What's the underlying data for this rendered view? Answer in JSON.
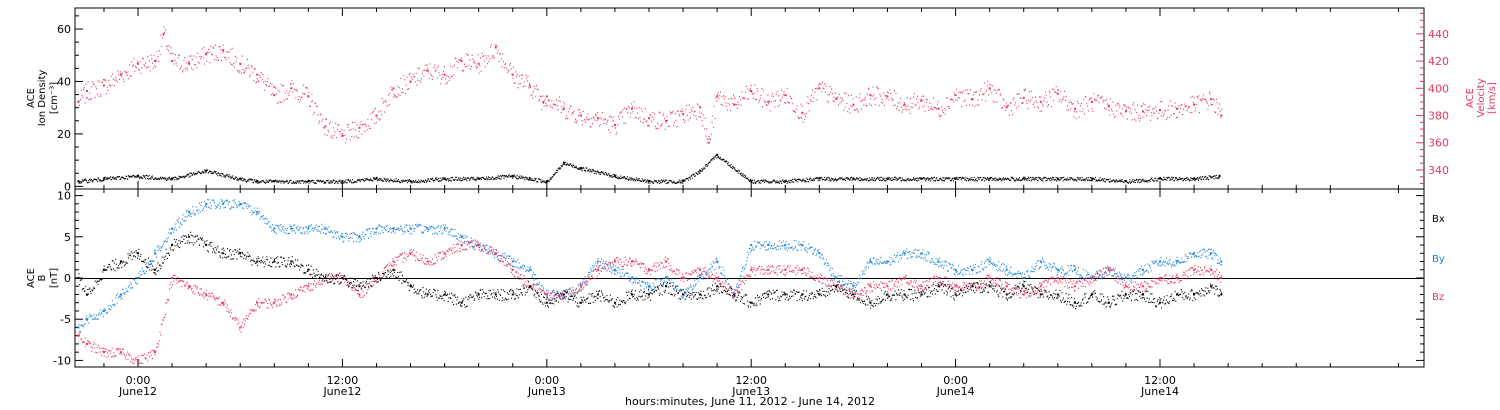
{
  "colors": {
    "density": "#000000",
    "velocity": "#e8365f",
    "bx": "#000000",
    "by": "#1a83e0",
    "bz": "#e8365f"
  },
  "x_axis": {
    "title": "hours:minutes, June 11, 2012 - June 14, 2012",
    "ticks": [
      {
        "time": "0:00",
        "date": "June12",
        "h": 24
      },
      {
        "time": "12:00",
        "date": "June12",
        "h": 36
      },
      {
        "time": "0:00",
        "date": "June13",
        "h": 48
      },
      {
        "time": "12:00",
        "date": "June13",
        "h": 60
      },
      {
        "time": "0:00",
        "date": "June14",
        "h": 72
      },
      {
        "time": "12:00",
        "date": "June14",
        "h": 84
      }
    ]
  },
  "panel1": {
    "left_label": [
      "ACE",
      "Ion Density",
      "[cm⁻³]"
    ],
    "right_label": [
      "ACE",
      "Velocity",
      "[km/s]"
    ],
    "left_ticks": [
      "0",
      "20",
      "40",
      "60"
    ],
    "right_ticks": [
      "340",
      "360",
      "380",
      "400",
      "420",
      "440"
    ]
  },
  "panel2": {
    "left_label": [
      "ACE",
      "B",
      "[nT]"
    ],
    "left_ticks": [
      "-10",
      "-5",
      "0",
      "5",
      "10"
    ],
    "legend": [
      "Bx",
      "By",
      "Bz"
    ]
  },
  "chart_data": [
    {
      "type": "scatter",
      "title": "",
      "xlabel": "hours:minutes, June 11, 2012 - June 14, 2012",
      "ylabel": "ACE Ion Density [cm^-3]",
      "y2label": "ACE Velocity [km/s]",
      "xlim": [
        20.3,
        99.5
      ],
      "ylim": [
        -1,
        68
      ],
      "y2lim": [
        326,
        459
      ],
      "series": [
        {
          "name": "Ion Density",
          "axis": "left",
          "x": [
            20.5,
            22,
            24,
            26,
            28,
            30,
            31,
            32,
            34,
            36,
            38,
            40,
            42,
            44,
            46,
            47,
            48,
            49,
            50,
            52,
            54,
            56,
            57,
            58,
            60,
            62,
            64,
            66,
            68,
            70,
            72,
            74,
            76,
            78,
            80,
            82,
            84,
            86,
            87.5
          ],
          "y": [
            2,
            3,
            4,
            3,
            6,
            3,
            2,
            2,
            2,
            2,
            3,
            2,
            3,
            3,
            4,
            3,
            2,
            9,
            7,
            4,
            2,
            2,
            6,
            12,
            2,
            2,
            3,
            3,
            3,
            3,
            3,
            3,
            3,
            3,
            3,
            2,
            3,
            3,
            4
          ]
        },
        {
          "name": "Velocity",
          "axis": "right",
          "x": [
            20.5,
            21,
            22,
            23,
            24,
            25,
            25.5,
            26,
            27,
            28,
            29,
            30,
            31,
            32,
            33,
            34,
            35,
            36,
            37,
            38,
            39,
            40,
            41,
            42,
            43,
            44,
            45,
            46,
            47,
            47.8,
            48,
            49,
            50,
            51,
            52,
            53,
            54,
            55,
            56,
            57,
            57.5,
            58,
            59,
            60,
            61,
            62,
            63,
            64,
            65,
            66,
            67,
            68,
            69,
            70,
            71,
            72,
            73,
            74,
            75,
            76,
            77,
            78,
            79,
            80,
            81,
            82,
            83,
            84,
            85,
            86,
            87,
            87.6
          ],
          "y": [
            390,
            398,
            402,
            410,
            418,
            420,
            440,
            420,
            418,
            425,
            428,
            418,
            410,
            395,
            400,
            394,
            372,
            365,
            371,
            380,
            400,
            405,
            413,
            410,
            420,
            418,
            430,
            410,
            402,
            390,
            394,
            385,
            380,
            378,
            373,
            385,
            378,
            376,
            381,
            386,
            360,
            394,
            388,
            398,
            390,
            395,
            382,
            400,
            392,
            388,
            395,
            394,
            388,
            391,
            385,
            395,
            392,
            400,
            386,
            393,
            390,
            396,
            385,
            390,
            387,
            383,
            383,
            384,
            385,
            388,
            392,
            380
          ]
        }
      ]
    },
    {
      "type": "scatter",
      "title": "",
      "xlabel": "hours:minutes, June 11, 2012 - June 14, 2012",
      "ylabel": "ACE B [nT]",
      "xlim": [
        20.3,
        99.5
      ],
      "ylim": [
        -10.8,
        10.8
      ],
      "series": [
        {
          "name": "Bx",
          "x": [
            20.5,
            21,
            22,
            23,
            24,
            25,
            26,
            27,
            28,
            29,
            30,
            31,
            32,
            33,
            34,
            35,
            36,
            37,
            38,
            39,
            40,
            41,
            42,
            43,
            44,
            45,
            46,
            47,
            48,
            49,
            50,
            51,
            52,
            53,
            54,
            55,
            56,
            57,
            58,
            59,
            60,
            61,
            62,
            63,
            64,
            65,
            66,
            67,
            68,
            69,
            70,
            71,
            72,
            73,
            74,
            75,
            76,
            77,
            78,
            79,
            80,
            81,
            82,
            83,
            84,
            85,
            86,
            87,
            87.6
          ],
          "y": [
            0,
            -2,
            1,
            2,
            3,
            1,
            4,
            5,
            4,
            3,
            3,
            2,
            2,
            2,
            1,
            0,
            0,
            -1,
            0,
            1,
            -1,
            -2,
            -2,
            -3,
            -2,
            -2,
            -2,
            -1,
            -3,
            -2,
            -3,
            -2,
            -3,
            -2,
            -2,
            -1,
            -2,
            -2,
            -1,
            -2,
            -3,
            -2,
            -2,
            -2,
            -2,
            -1,
            -2,
            -3,
            -2,
            -2,
            -2,
            -1,
            -2,
            -1,
            -1,
            -2,
            -1,
            -2,
            -2,
            -3,
            -2,
            -3,
            -2,
            -2,
            -3,
            -2,
            -2,
            -1,
            -2
          ]
        },
        {
          "name": "By",
          "x": [
            20.5,
            21,
            22,
            23,
            24,
            25,
            26,
            27,
            28,
            29,
            30,
            31,
            32,
            33,
            34,
            35,
            36,
            37,
            38,
            39,
            40,
            41,
            42,
            43,
            44,
            45,
            46,
            47,
            48,
            49,
            50,
            51,
            52,
            53,
            54,
            55,
            56,
            57,
            58,
            59,
            60,
            61,
            62,
            63,
            64,
            65,
            66,
            67,
            68,
            69,
            70,
            71,
            72,
            73,
            74,
            75,
            76,
            77,
            78,
            79,
            80,
            81,
            82,
            83,
            84,
            85,
            86,
            87,
            87.6
          ],
          "y": [
            -6,
            -5,
            -4,
            -2,
            0,
            3,
            6,
            8,
            9,
            9,
            9,
            8,
            6,
            6,
            6,
            6,
            5,
            5,
            6,
            6,
            6,
            6,
            6,
            5,
            4,
            3,
            2,
            1,
            -2,
            -2,
            -1,
            2,
            1,
            0,
            -1,
            0,
            -2,
            0,
            2,
            -2,
            4,
            4,
            4,
            4,
            3,
            0,
            -1,
            2,
            2,
            3,
            3,
            2,
            1,
            1,
            2,
            1,
            0,
            2,
            1,
            1,
            0,
            1,
            0,
            1,
            2,
            2,
            3,
            3,
            2
          ]
        },
        {
          "name": "Bz",
          "x": [
            20.5,
            21,
            22,
            23,
            24,
            25,
            26,
            27,
            28,
            29,
            30,
            31,
            32,
            33,
            34,
            35,
            36,
            37,
            38,
            39,
            40,
            41,
            42,
            43,
            44,
            45,
            46,
            47,
            48,
            49,
            50,
            51,
            52,
            53,
            54,
            55,
            56,
            57,
            58,
            59,
            60,
            61,
            62,
            63,
            64,
            65,
            66,
            67,
            68,
            69,
            70,
            71,
            72,
            73,
            74,
            75,
            76,
            77,
            78,
            79,
            80,
            81,
            82,
            83,
            84,
            85,
            86,
            87,
            87.6
          ],
          "y": [
            -7,
            -8,
            -9,
            -9,
            -10,
            -9,
            0,
            -1,
            -2,
            -3,
            -6,
            -3,
            -3,
            -2,
            -1,
            0,
            0,
            -2,
            0,
            2,
            3,
            2,
            3,
            4,
            4,
            3,
            1,
            -1,
            -2,
            -2,
            -1,
            1,
            2,
            2,
            1,
            2,
            0,
            1,
            0,
            -2,
            1,
            1,
            1,
            1,
            0,
            -1,
            -2,
            -1,
            -1,
            0,
            -1,
            0,
            -1,
            -1,
            0,
            -1,
            -2,
            -1,
            0,
            -1,
            0,
            1,
            -1,
            -1,
            0,
            0,
            1,
            1,
            0
          ]
        }
      ]
    }
  ]
}
